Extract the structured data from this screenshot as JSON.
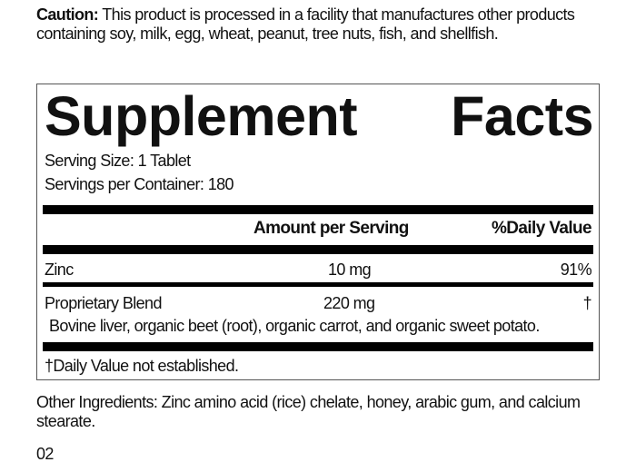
{
  "caution": {
    "label": "Caution:",
    "text": " This product is processed in a facility that manufactures other products containing soy, milk, egg, wheat, peanut, tree nuts, fish, and shellfish."
  },
  "facts": {
    "title_word1": "Supplement",
    "title_word2": "Facts",
    "serving_size": "Serving Size: 1 Tablet",
    "servings_per_container": "Servings per Container: 180",
    "header_amount": "Amount per Serving",
    "header_dv": "%Daily Value",
    "rows": [
      {
        "name": "Zinc",
        "amount": "10 mg",
        "dv": "91%"
      },
      {
        "name": "Proprietary Blend",
        "amount": "220 mg",
        "dv": "†",
        "ingredients": "Bovine liver, organic beet (root), organic carrot, and organic sweet potato."
      }
    ],
    "footnote": "†Daily Value not established."
  },
  "other_ingredients": "Other Ingredients: Zinc amino acid (rice) chelate, honey, arabic gum, and calcium stearate.",
  "page_number": "02"
}
